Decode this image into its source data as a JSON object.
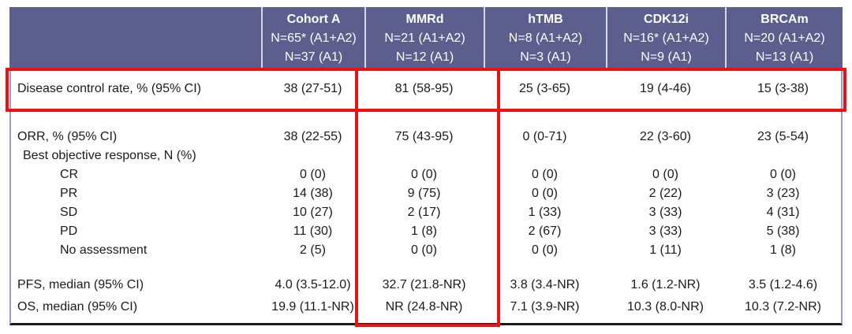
{
  "chart_data": {
    "type": "table",
    "columns": [
      {
        "name": "Cohort A",
        "n_total": "N=65* (A1+A2)",
        "n_a1": "N=37 (A1)"
      },
      {
        "name": "MMRd",
        "n_total": "N=21 (A1+A2)",
        "n_a1": "N=12 (A1)"
      },
      {
        "name": "hTMB",
        "n_total": "N=8 (A1+A2)",
        "n_a1": "N=3 (A1)"
      },
      {
        "name": "CDK12i",
        "n_total": "N=16* (A1+A2)",
        "n_a1": "N=9 (A1)"
      },
      {
        "name": "BRCAm",
        "n_total": "N=20 (A1+A2)",
        "n_a1": "N=13 (A1)"
      }
    ],
    "rows": [
      {
        "label": "Disease control rate, % (95% CI)",
        "values": [
          "38 (27-51)",
          "81 (58-95)",
          "25 (3-65)",
          "19 (4-46)",
          "15 (3-38)"
        ]
      },
      {
        "label": "ORR, % (95% CI)",
        "values": [
          "38 (22-55)",
          "75 (43-95)",
          "0 (0-71)",
          "22 (3-60)",
          "23 (5-54)"
        ]
      },
      {
        "label": "Best objective response, N (%)",
        "values": [
          "",
          "",
          "",
          "",
          ""
        ]
      },
      {
        "label": "CR",
        "values": [
          "0 (0)",
          "0 (0)",
          "0 (0)",
          "0 (0)",
          "0 (0)"
        ]
      },
      {
        "label": "PR",
        "values": [
          "14 (38)",
          "9 (75)",
          "0 (0)",
          "2 (22)",
          "3 (23)"
        ]
      },
      {
        "label": "SD",
        "values": [
          "10 (27)",
          "2 (17)",
          "1 (33)",
          "3 (33)",
          "4 (31)"
        ]
      },
      {
        "label": "PD",
        "values": [
          "11 (30)",
          "1 (8)",
          "2 (67)",
          "3 (33)",
          "5 (38)"
        ]
      },
      {
        "label": "No assessment",
        "values": [
          "2 (5)",
          "0 (0)",
          "0 (0)",
          "1 (11)",
          "1 (8)"
        ]
      },
      {
        "label": "PFS, median (95% CI)",
        "values": [
          "4.0 (3.5-12.0)",
          "32.7 (21.8-NR)",
          "3.8 (3.4-NR)",
          "1.6 (1.2-NR)",
          "3.5 (1.2-4.6)"
        ]
      },
      {
        "label": "OS, median (95% CI)",
        "values": [
          "19.9 (11.1-NR)",
          "NR (24.8-NR)",
          "7.1 (3.9-NR)",
          "10.3 (8.0-NR)",
          "10.3 (7.2-NR)"
        ]
      }
    ],
    "annotations": {
      "highlighted_row": "Disease control rate, % (95% CI)",
      "highlighted_column": "MMRd"
    }
  },
  "colors": {
    "header_bg": "#5C5E8E",
    "header_text": "#FFFFFF",
    "header_divider": "#D8D9E8",
    "table_side_border": "#989CC8",
    "table_bottom_border": "#1A1A1A",
    "highlight_red": "#EE1111",
    "body_text": "#1A1A1A"
  }
}
